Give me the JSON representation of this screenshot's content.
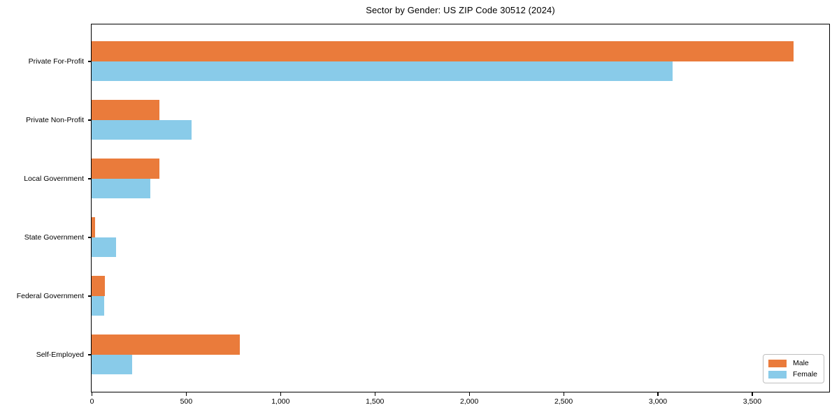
{
  "chart_data": {
    "type": "bar",
    "orientation": "horizontal",
    "title": "Sector by Gender: US ZIP Code 30512 (2024)",
    "categories": [
      "Private For-Profit",
      "Private Non-Profit",
      "Local Government",
      "State Government",
      "Federal Government",
      "Self-Employed"
    ],
    "series": [
      {
        "name": "Male",
        "color": "#ea7b3b",
        "values": [
          3720,
          360,
          360,
          20,
          70,
          785
        ]
      },
      {
        "name": "Female",
        "color": "#89cbe9",
        "values": [
          3080,
          530,
          310,
          130,
          65,
          215
        ]
      }
    ],
    "xlabel": "",
    "ylabel": "",
    "xlim": [
      0,
      3906
    ],
    "xticks": [
      0,
      500,
      1000,
      1500,
      2000,
      2500,
      3000,
      3500
    ],
    "xtick_labels": [
      "0",
      "500",
      "1,000",
      "1,500",
      "2,000",
      "2,500",
      "3,000",
      "3,500"
    ],
    "grid": false,
    "legend_position": "lower right"
  }
}
